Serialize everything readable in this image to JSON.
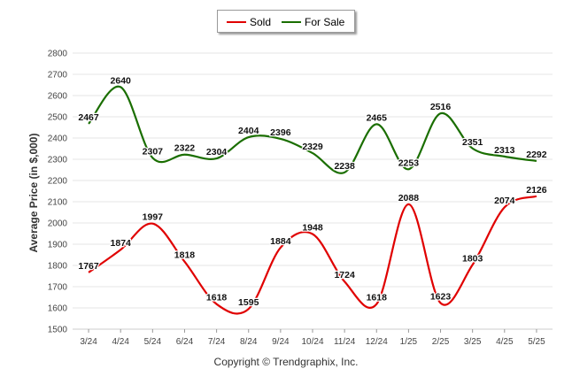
{
  "chart_data": {
    "type": "line",
    "categories": [
      "3/24",
      "4/24",
      "5/24",
      "6/24",
      "7/24",
      "8/24",
      "9/24",
      "10/24",
      "11/24",
      "12/24",
      "1/25",
      "2/25",
      "3/25",
      "4/25",
      "5/25"
    ],
    "series": [
      {
        "name": "Sold",
        "color": "#e00000",
        "values": [
          1767,
          1874,
          1997,
          1818,
          1618,
          1595,
          1884,
          1948,
          1724,
          1618,
          2088,
          1623,
          1803,
          2074,
          2126
        ]
      },
      {
        "name": "For Sale",
        "color": "#1a6e00",
        "values": [
          2467,
          2640,
          2307,
          2322,
          2304,
          2404,
          2396,
          2329,
          2238,
          2465,
          2253,
          2516,
          2351,
          2313,
          2292
        ]
      }
    ],
    "ylabel": "Average Price (in $,000)",
    "xlabel": "",
    "ylim": [
      1500,
      2800
    ],
    "yticks": [
      1500,
      1600,
      1700,
      1800,
      1900,
      2000,
      2100,
      2200,
      2300,
      2400,
      2500,
      2600,
      2700,
      2800
    ],
    "grid": "horizontal",
    "legend_position": "top-center"
  },
  "footer": {
    "copyright": "Copyright © Trendgraphix, Inc."
  }
}
